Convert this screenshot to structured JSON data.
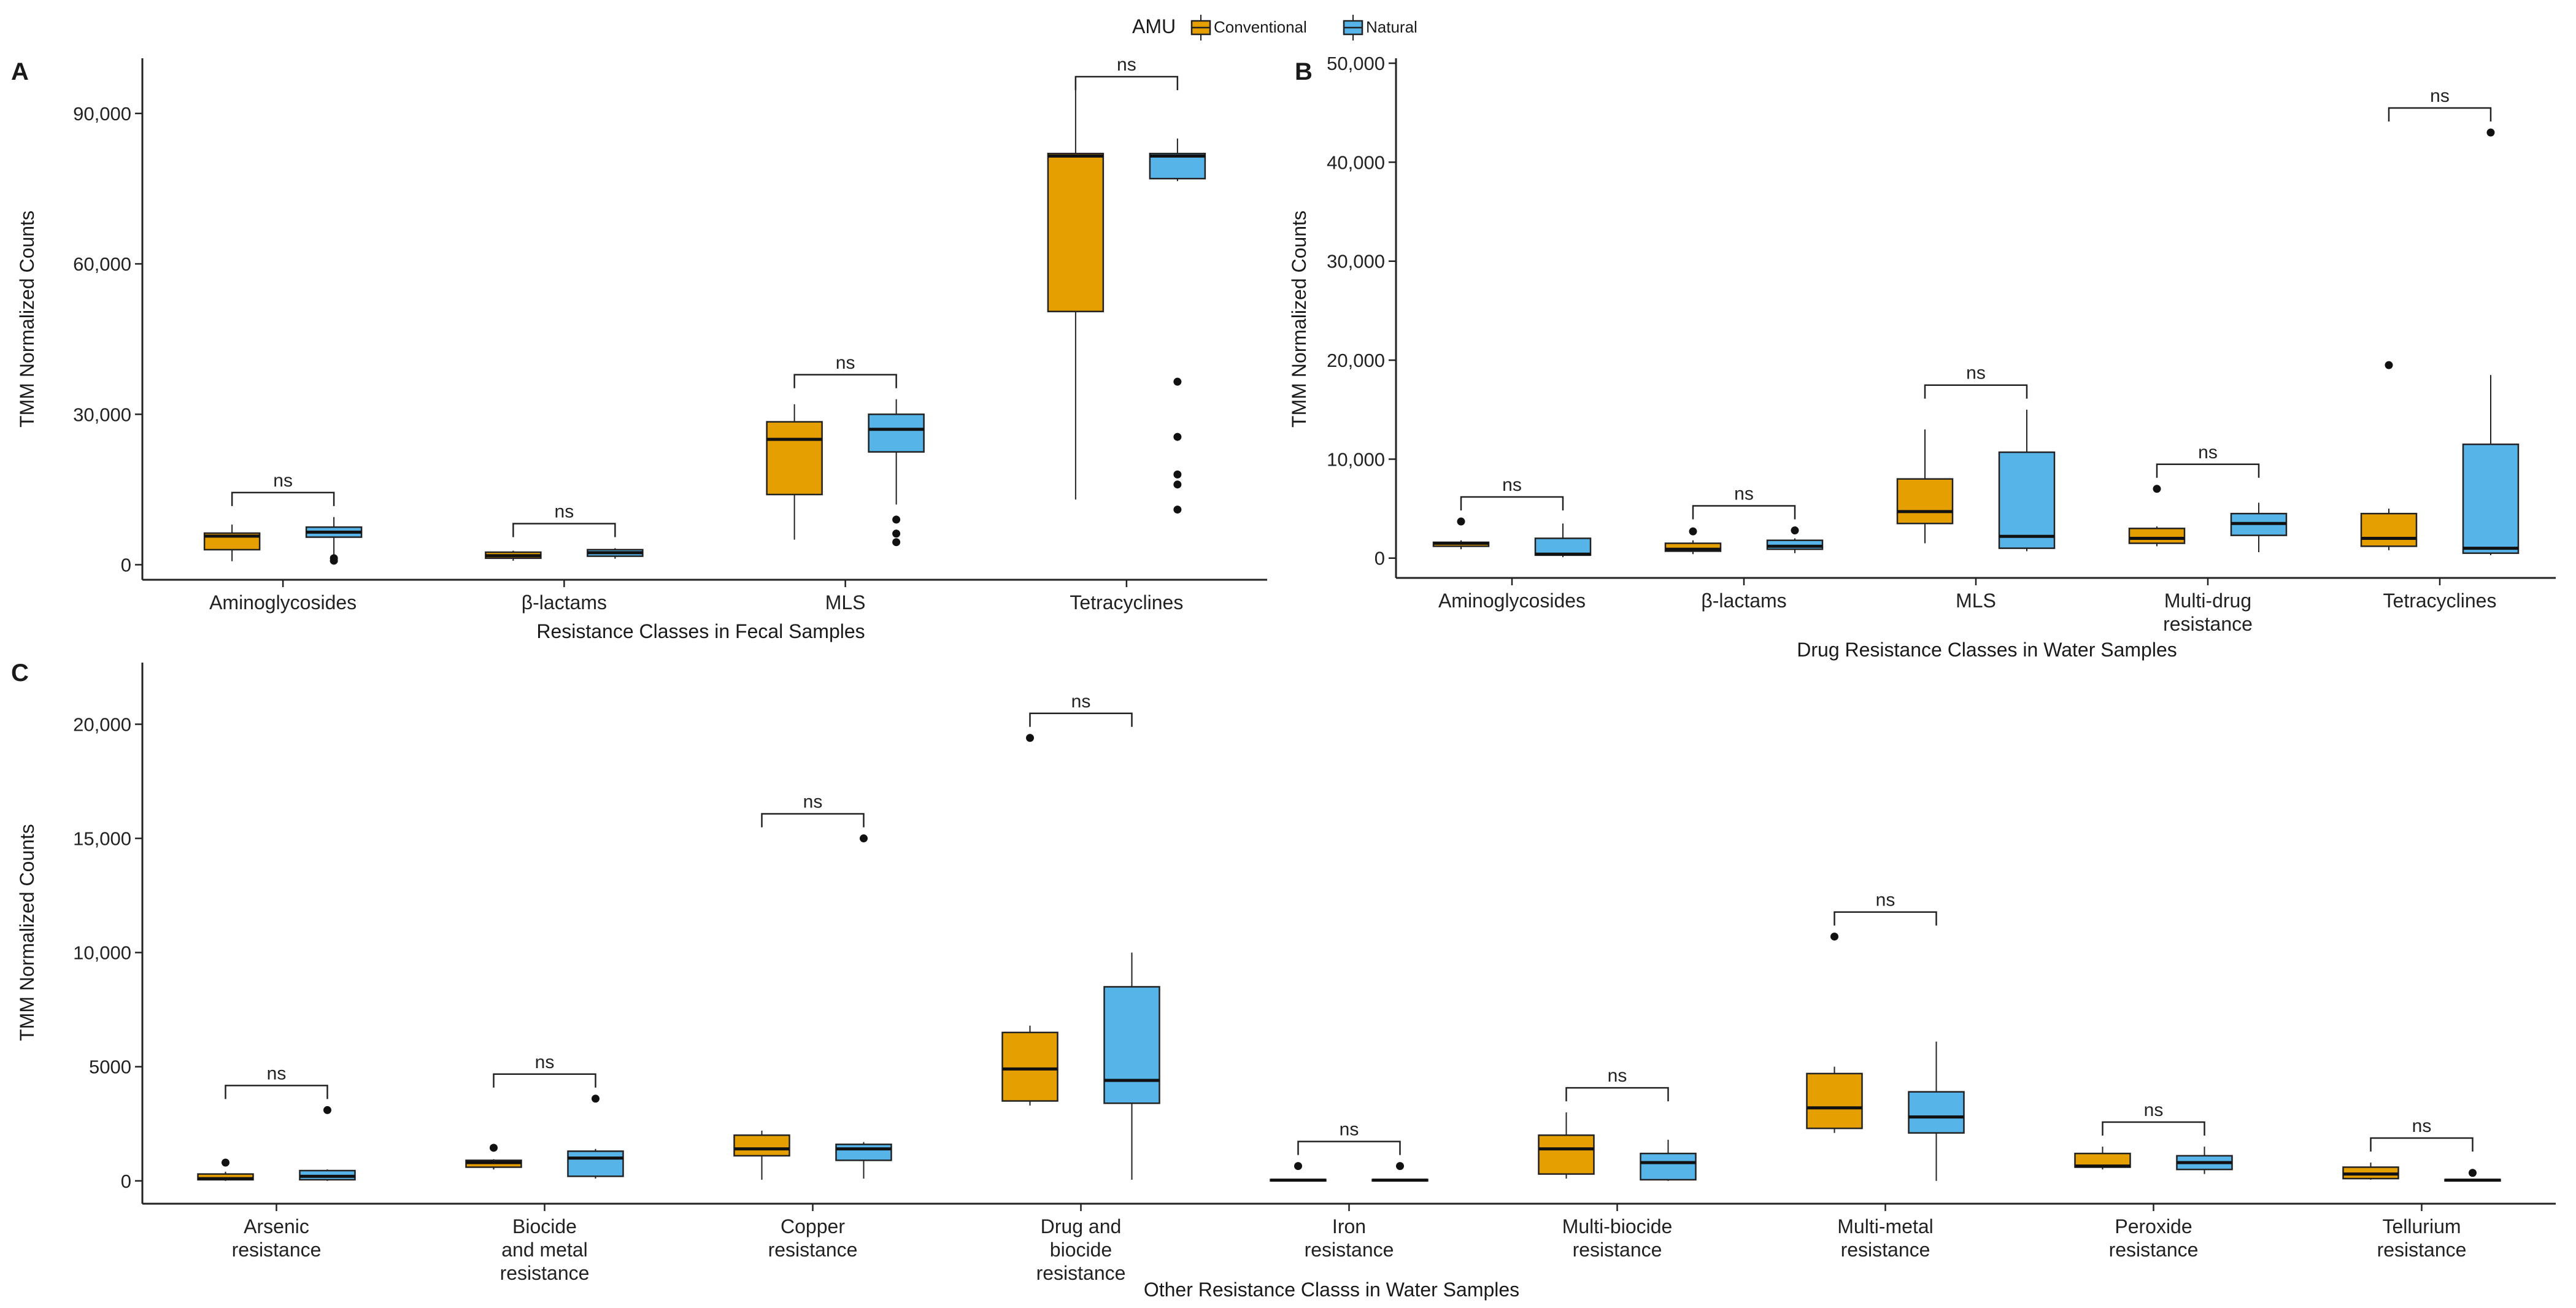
{
  "chart_data": {
    "type": "box",
    "legend": {
      "title": "AMU",
      "entries": [
        {
          "name": "Conventional",
          "color": "#E69F00"
        },
        {
          "name": "Natural",
          "color": "#56B4E9"
        }
      ],
      "placement": "top-center"
    },
    "panels": [
      {
        "id": "A",
        "label": "A",
        "xlabel": "Resistance Classes in Fecal Samples",
        "ylabel": "TMM Normalized Counts",
        "ylim": [
          -3000,
          101000
        ],
        "yticks": [
          0,
          30000,
          60000,
          90000
        ],
        "ytick_labels": [
          "0",
          "30,000",
          "60,000",
          "90,000"
        ],
        "categories": [
          {
            "label": "Aminoglycosides",
            "sig": "ns",
            "boxes": {
              "Conventional": {
                "whislo": 700,
                "q1": 3000,
                "med": 5700,
                "q3": 6300,
                "whishi": 8000,
                "fliers": []
              },
              "Natural": {
                "whislo": 1800,
                "q1": 5500,
                "med": 6500,
                "q3": 7500,
                "whishi": 9500,
                "fliers": [
                  800,
                  1300
                ]
              }
            }
          },
          {
            "label": "β-lactams",
            "sig": "ns",
            "boxes": {
              "Conventional": {
                "whislo": 800,
                "q1": 1300,
                "med": 1800,
                "q3": 2500,
                "whishi": 2800,
                "fliers": []
              },
              "Natural": {
                "whislo": 1200,
                "q1": 1700,
                "med": 2400,
                "q3": 3000,
                "whishi": 3300,
                "fliers": []
              }
            }
          },
          {
            "label": "MLS",
            "sig": "ns",
            "boxes": {
              "Conventional": {
                "whislo": 5000,
                "q1": 14000,
                "med": 25000,
                "q3": 28500,
                "whishi": 32000,
                "fliers": []
              },
              "Natural": {
                "whislo": 12000,
                "q1": 22500,
                "med": 27000,
                "q3": 30000,
                "whishi": 33000,
                "fliers": [
                  4500,
                  6200,
                  9000
                ]
              }
            }
          },
          {
            "label": "Tetracyclines",
            "sig": "ns",
            "boxes": {
              "Conventional": {
                "whislo": 13000,
                "q1": 50500,
                "med": 81500,
                "q3": 82000,
                "whishi": 97000,
                "fliers": []
              },
              "Natural": {
                "whislo": 76500,
                "q1": 77000,
                "med": 81500,
                "q3": 82000,
                "whishi": 85000,
                "fliers": [
                  11000,
                  16000,
                  18000,
                  25500,
                  36500
                ]
              }
            }
          }
        ]
      },
      {
        "id": "B",
        "label": "B",
        "xlabel": "Drug Resistance Classes in Water Samples",
        "ylabel": "TMM Normalized Counts",
        "ylim": [
          -2000,
          50500
        ],
        "yticks": [
          0,
          10000,
          20000,
          30000,
          40000,
          50000
        ],
        "ytick_labels": [
          "0",
          "10,000",
          "20,000",
          "30,000",
          "40,000",
          "50,000"
        ],
        "categories": [
          {
            "label": "Aminoglycosides",
            "sig": "ns",
            "boxes": {
              "Conventional": {
                "whislo": 900,
                "q1": 1200,
                "med": 1500,
                "q3": 1600,
                "whishi": 1800,
                "fliers": [
                  3700
                ]
              },
              "Natural": {
                "whislo": 100,
                "q1": 300,
                "med": 400,
                "q3": 2000,
                "whishi": 3500,
                "fliers": []
              }
            }
          },
          {
            "label": "β-lactams",
            "sig": "ns",
            "boxes": {
              "Conventional": {
                "whislo": 400,
                "q1": 700,
                "med": 900,
                "q3": 1500,
                "whishi": 1800,
                "fliers": [
                  2700
                ]
              },
              "Natural": {
                "whislo": 500,
                "q1": 900,
                "med": 1200,
                "q3": 1800,
                "whishi": 2000,
                "fliers": [
                  2800
                ]
              }
            }
          },
          {
            "label": "MLS",
            "sig": "ns",
            "boxes": {
              "Conventional": {
                "whislo": 1500,
                "q1": 3500,
                "med": 4700,
                "q3": 8000,
                "whishi": 13000,
                "fliers": []
              },
              "Natural": {
                "whislo": 700,
                "q1": 1000,
                "med": 2200,
                "q3": 10700,
                "whishi": 15000,
                "fliers": []
              }
            }
          },
          {
            "label": "Multi-drug\nresistance",
            "sig": "ns",
            "boxes": {
              "Conventional": {
                "whislo": 1200,
                "q1": 1500,
                "med": 2000,
                "q3": 3000,
                "whishi": 3200,
                "fliers": [
                  7000
                ]
              },
              "Natural": {
                "whislo": 600,
                "q1": 2300,
                "med": 3500,
                "q3": 4500,
                "whishi": 5600,
                "fliers": []
              }
            }
          },
          {
            "label": "Tetracyclines",
            "sig": "ns",
            "boxes": {
              "Conventional": {
                "whislo": 800,
                "q1": 1200,
                "med": 2000,
                "q3": 4500,
                "whishi": 5000,
                "fliers": [
                  19500
                ]
              },
              "Natural": {
                "whislo": 300,
                "q1": 500,
                "med": 1000,
                "q3": 11500,
                "whishi": 18500,
                "fliers": [
                  43000
                ]
              }
            }
          }
        ]
      },
      {
        "id": "C",
        "label": "C",
        "xlabel": "Other Resistance Classs in Water Samples",
        "ylabel": "TMM Normalized Counts",
        "ylim": [
          -1000,
          22700
        ],
        "yticks": [
          0,
          5000,
          10000,
          15000,
          20000
        ],
        "ytick_labels": [
          "0",
          "5000",
          "10,000",
          "15,000",
          "20,000"
        ],
        "categories": [
          {
            "label": "Arsenic\nresistance",
            "sig": "ns",
            "boxes": {
              "Conventional": {
                "whislo": 0,
                "q1": 50,
                "med": 100,
                "q3": 300,
                "whishi": 400,
                "fliers": [
                  800
                ]
              },
              "Natural": {
                "whislo": 0,
                "q1": 50,
                "med": 200,
                "q3": 450,
                "whishi": 500,
                "fliers": [
                  3100
                ]
              }
            }
          },
          {
            "label": "Biocide\nand metal\nresistance",
            "sig": "ns",
            "boxes": {
              "Conventional": {
                "whislo": 500,
                "q1": 600,
                "med": 800,
                "q3": 900,
                "whishi": 950,
                "fliers": [
                  1450
                ]
              },
              "Natural": {
                "whislo": 100,
                "q1": 200,
                "med": 1000,
                "q3": 1300,
                "whishi": 1400,
                "fliers": [
                  3600
                ]
              }
            }
          },
          {
            "label": "Copper\nresistance",
            "sig": "ns",
            "boxes": {
              "Conventional": {
                "whislo": 50,
                "q1": 1100,
                "med": 1400,
                "q3": 2000,
                "whishi": 2200,
                "fliers": []
              },
              "Natural": {
                "whislo": 100,
                "q1": 900,
                "med": 1400,
                "q3": 1600,
                "whishi": 1700,
                "fliers": [
                  15000
                ]
              }
            }
          },
          {
            "label": "Drug and\nbiocide\nresistance",
            "sig": "ns",
            "boxes": {
              "Conventional": {
                "whislo": 3300,
                "q1": 3500,
                "med": 4900,
                "q3": 6500,
                "whishi": 6800,
                "fliers": [
                  19400
                ]
              },
              "Natural": {
                "whislo": 50,
                "q1": 3400,
                "med": 4400,
                "q3": 8500,
                "whishi": 10000,
                "fliers": []
              }
            }
          },
          {
            "label": "Iron\nresistance",
            "sig": "ns",
            "boxes": {
              "Conventional": {
                "whislo": 0,
                "q1": 0,
                "med": 30,
                "q3": 60,
                "whishi": 80,
                "fliers": [
                  650
                ]
              },
              "Natural": {
                "whislo": 0,
                "q1": 0,
                "med": 30,
                "q3": 60,
                "whishi": 80,
                "fliers": [
                  650
                ]
              }
            }
          },
          {
            "label": "Multi-biocide\nresistance",
            "sig": "ns",
            "boxes": {
              "Conventional": {
                "whislo": 100,
                "q1": 300,
                "med": 1400,
                "q3": 2000,
                "whishi": 3000,
                "fliers": []
              },
              "Natural": {
                "whislo": 0,
                "q1": 50,
                "med": 800,
                "q3": 1200,
                "whishi": 1800,
                "fliers": []
              }
            }
          },
          {
            "label": "Multi-metal\nresistance",
            "sig": "ns",
            "boxes": {
              "Conventional": {
                "whislo": 2100,
                "q1": 2300,
                "med": 3200,
                "q3": 4700,
                "whishi": 5000,
                "fliers": [
                  10700
                ]
              },
              "Natural": {
                "whislo": 0,
                "q1": 2100,
                "med": 2800,
                "q3": 3900,
                "whishi": 6100,
                "fliers": []
              }
            }
          },
          {
            "label": "Peroxide\nresistance",
            "sig": "ns",
            "boxes": {
              "Conventional": {
                "whislo": 500,
                "q1": 600,
                "med": 650,
                "q3": 1200,
                "whishi": 1500,
                "fliers": []
              },
              "Natural": {
                "whislo": 300,
                "q1": 500,
                "med": 800,
                "q3": 1100,
                "whishi": 1500,
                "fliers": []
              }
            }
          },
          {
            "label": "Tellurium\nresistance",
            "sig": "ns",
            "boxes": {
              "Conventional": {
                "whislo": 50,
                "q1": 100,
                "med": 300,
                "q3": 600,
                "whishi": 800,
                "fliers": []
              },
              "Natural": {
                "whislo": 0,
                "q1": 0,
                "med": 30,
                "q3": 60,
                "whishi": 100,
                "fliers": [
                  350
                ]
              }
            }
          }
        ]
      }
    ]
  }
}
